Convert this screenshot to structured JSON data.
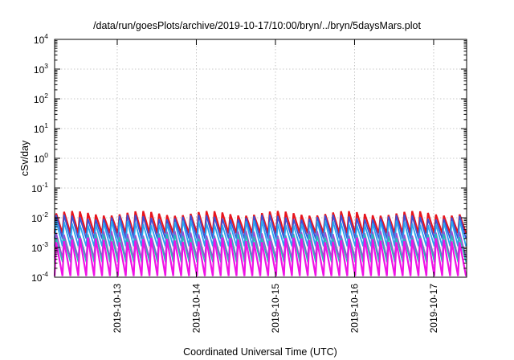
{
  "chart_data": {
    "type": "line",
    "title": "/data/run/goesPlots/archive/2019-10-17/10:00/bryn/../bryn/5daysMars.plot",
    "xlabel": "Coordinated Universal Time (UTC)",
    "ylabel": "cSv/day",
    "yscale": "log",
    "ylim": [
      0.0001,
      10000
    ],
    "y_tick_labels": [
      {
        "value": 0.0001,
        "base": "10",
        "exp": "-4"
      },
      {
        "value": 0.001,
        "base": "10",
        "exp": "-3"
      },
      {
        "value": 0.01,
        "base": "10",
        "exp": "-2"
      },
      {
        "value": 0.1,
        "base": "10",
        "exp": "-1"
      },
      {
        "value": 1,
        "base": "10",
        "exp": "0"
      },
      {
        "value": 10,
        "base": "10",
        "exp": "1"
      },
      {
        "value": 100,
        "base": "10",
        "exp": "2"
      },
      {
        "value": 1000,
        "base": "10",
        "exp": "3"
      },
      {
        "value": 10000,
        "base": "10",
        "exp": "4"
      }
    ],
    "xlim": [
      "2019-10-12 05:00",
      "2019-10-17 10:00"
    ],
    "x_ticks": [
      {
        "value": "2019-10-13 00:00",
        "label": "2019-10-13"
      },
      {
        "value": "2019-10-14 00:00",
        "label": "2019-10-14"
      },
      {
        "value": "2019-10-15 00:00",
        "label": "2019-10-15"
      },
      {
        "value": "2019-10-16 00:00",
        "label": "2019-10-16"
      },
      {
        "value": "2019-10-17 00:00",
        "label": "2019-10-17"
      }
    ],
    "grid": true,
    "legend": "none",
    "pattern": {
      "cycle_hours": 2.4,
      "phase_start": "2019-10-12 05:00",
      "note_rise_fraction": 0.2
    },
    "series": [
      {
        "color": "#e8141c",
        "peak": 0.014,
        "trough": 0.003,
        "width": 2.2
      },
      {
        "color": "#3a52d8",
        "peak": 0.0105,
        "trough": 0.002,
        "width": 1.8
      },
      {
        "color": "#2aa6ee",
        "peak": 0.0068,
        "trough": 0.0011,
        "width": 1.8
      },
      {
        "color": "#9a4fd0",
        "peak": 0.003,
        "trough": 0.00045,
        "width": 1.6
      },
      {
        "color": "#20c2b0",
        "peak": 0.0024,
        "trough": 0.00032,
        "width": 1.4
      },
      {
        "color": "#f012e6",
        "peak": 0.0018,
        "trough": 0.00011,
        "width": 2.2
      }
    ]
  }
}
